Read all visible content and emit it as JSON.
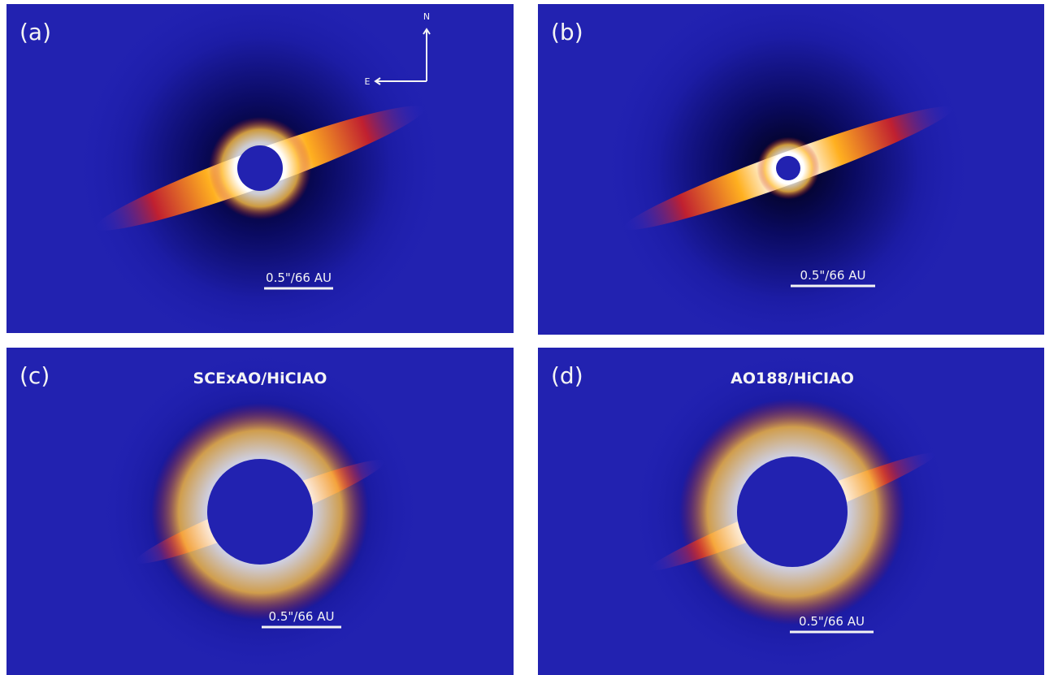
{
  "panels": [
    {
      "label": "(a)",
      "scale_bar": "0.5\"/66 AU",
      "compass": {
        "north": "N",
        "east": "E"
      }
    },
    {
      "label": "(b)",
      "scale_bar": "0.5\"/66 AU"
    },
    {
      "label": "(c)",
      "title": "SCExAO/HiCIAO",
      "scale_bar": "0.5\"/66 AU"
    },
    {
      "label": "(d)",
      "title": "AO188/HiCIAO",
      "scale_bar": "0.5\"/66 AU"
    }
  ]
}
